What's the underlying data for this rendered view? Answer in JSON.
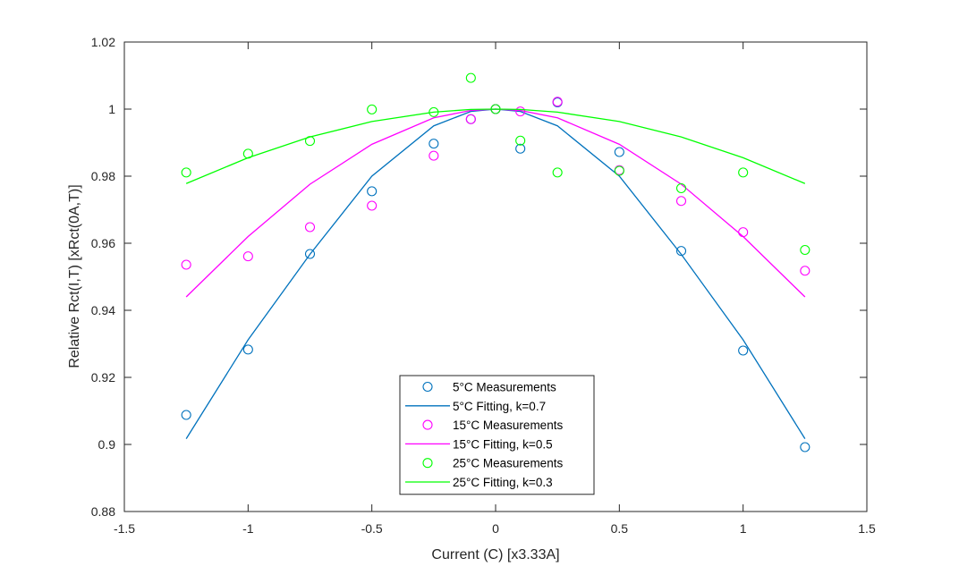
{
  "chart_data": {
    "type": "scatter",
    "title": "",
    "xlabel": "Current (C) [x3.33A]",
    "ylabel": "Relative Rct(I,T) [xRct(0A,T)]",
    "xlim": [
      -1.5,
      1.5
    ],
    "ylim": [
      0.88,
      1.02
    ],
    "xticks": [
      -1.5,
      -1,
      -0.5,
      0,
      0.5,
      1,
      1.5
    ],
    "xtick_labels": [
      "-1.5",
      "-1",
      "-0.5",
      "0",
      "0.5",
      "1",
      "1.5"
    ],
    "yticks": [
      0.88,
      0.9,
      0.92,
      0.94,
      0.96,
      0.98,
      1,
      1.02
    ],
    "ytick_labels": [
      "0.88",
      "0.9",
      "0.92",
      "0.94",
      "0.96",
      "0.98",
      "1",
      "1.02"
    ],
    "grid": false,
    "legend_position": "bottom-center",
    "x": [
      -1.25,
      -1,
      -0.75,
      -0.5,
      -0.25,
      -0.1,
      0,
      0.1,
      0.25,
      0.5,
      0.75,
      1,
      1.25
    ],
    "series": [
      {
        "name": "5°C Measurements",
        "mode": "markers",
        "color": "#0072BD",
        "values": [
          0.9088,
          0.9283,
          0.9568,
          0.9755,
          0.9897,
          0.997,
          1.0,
          0.9882,
          1.002,
          0.9872,
          0.9577,
          0.928,
          0.8992
        ]
      },
      {
        "name": "5°C Fitting, k=0.7",
        "mode": "line",
        "color": "#0072BD",
        "values": [
          0.9017,
          0.9312,
          0.9567,
          0.98,
          0.995,
          0.9993,
          1.0,
          0.9993,
          0.995,
          0.98,
          0.9567,
          0.9312,
          0.9017
        ]
      },
      {
        "name": "15°C Measurements",
        "mode": "markers",
        "color": "#FF00FF",
        "values": [
          0.9536,
          0.9561,
          0.9648,
          0.9712,
          0.9861,
          0.997,
          1.0,
          0.9993,
          1.0022,
          0.9818,
          0.9726,
          0.9633,
          0.9518
        ]
      },
      {
        "name": "15°C Fitting, k=0.5",
        "mode": "line",
        "color": "#FF00FF",
        "values": [
          0.944,
          0.962,
          0.9776,
          0.9895,
          0.9974,
          0.9996,
          1.0,
          0.9996,
          0.9974,
          0.9895,
          0.9776,
          0.962,
          0.944
        ]
      },
      {
        "name": "25°C Measurements",
        "mode": "markers",
        "color": "#00FF00",
        "values": [
          0.9811,
          0.9867,
          0.9905,
          0.9999,
          0.9991,
          1.0093,
          1.0,
          0.9906,
          0.9811,
          0.9816,
          0.9764,
          0.9811,
          0.958
        ]
      },
      {
        "name": "25°C Fitting, k=0.3",
        "mode": "line",
        "color": "#00FF00",
        "values": [
          0.9778,
          0.9855,
          0.9917,
          0.9963,
          0.9991,
          0.9999,
          1.0,
          0.9999,
          0.9991,
          0.9963,
          0.9917,
          0.9855,
          0.9778
        ]
      }
    ]
  }
}
